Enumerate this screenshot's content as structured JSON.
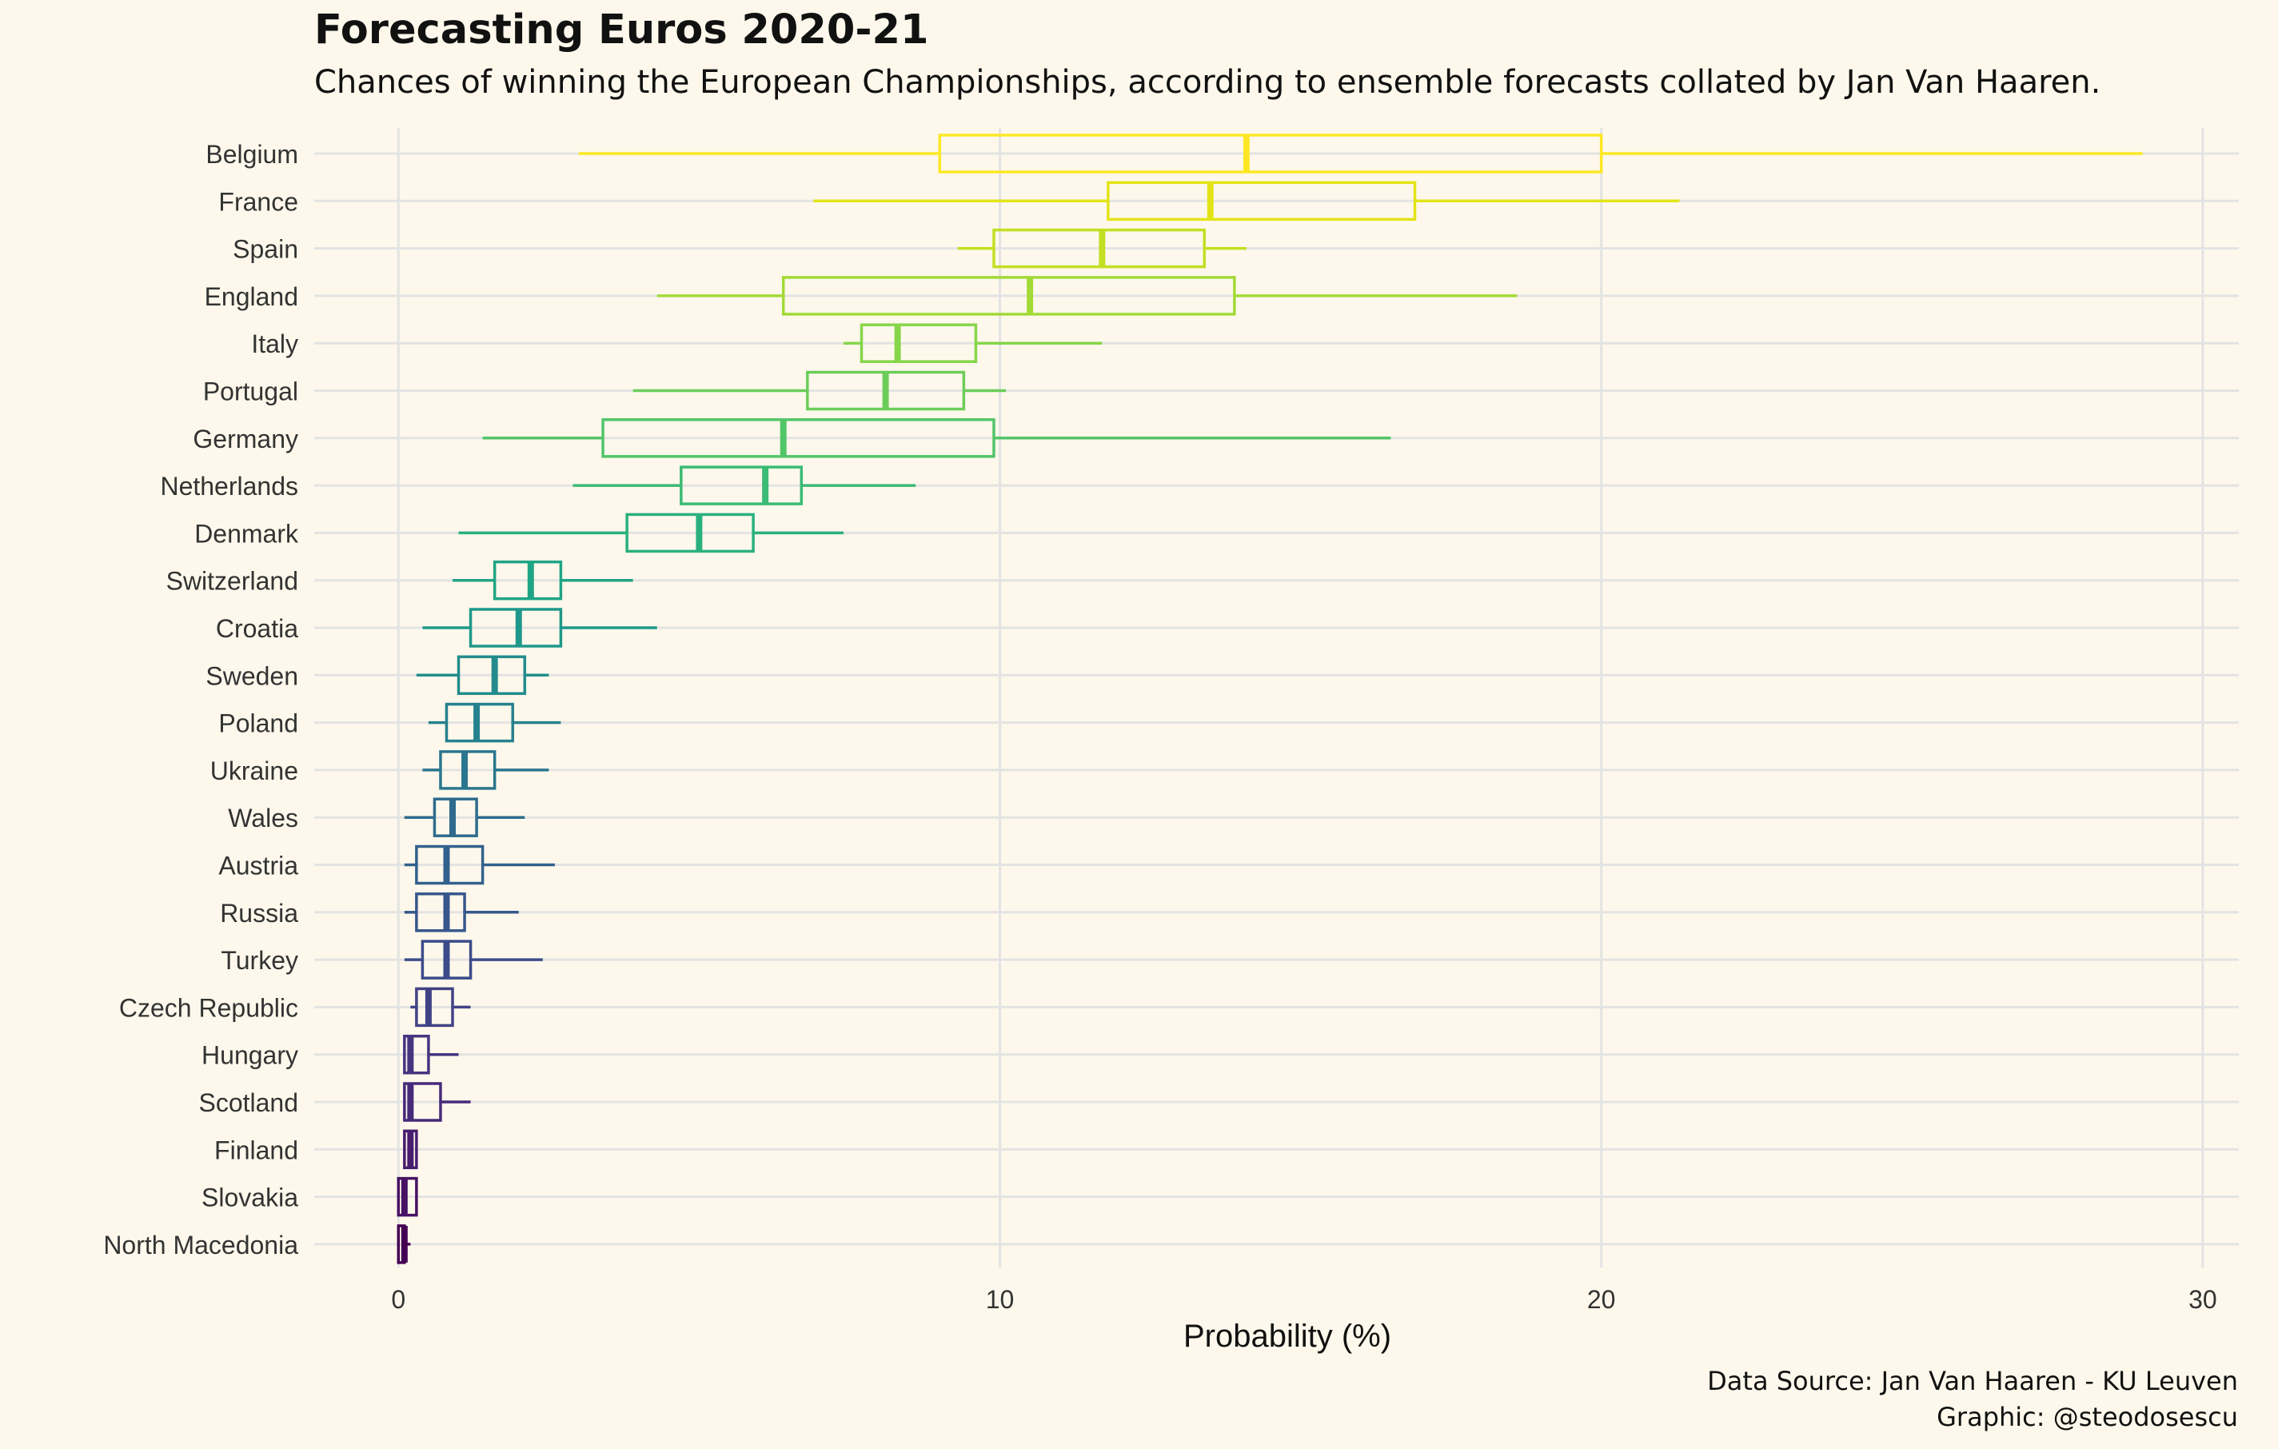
{
  "title": "Forecasting Euros 2020-21",
  "subtitle": "Chances of winning the European Championships, according to ensemble forecasts collated by Jan Van Haaren.",
  "caption": {
    "line1": "Data Source: Jan Van Haaren - KU Leuven",
    "line2": "Graphic: @steodosescu"
  },
  "colors": {
    "background": "#fdf8eb",
    "grid": "#e3e3e3",
    "text": "#111111",
    "tick_text": "#333333"
  },
  "chart_data": {
    "type": "boxplot",
    "orientation": "horizontal",
    "title": "Forecasting Euros 2020-21",
    "xlabel": "Probability (%)",
    "ylabel": "",
    "xlim": [
      -1.4,
      30.6
    ],
    "xticks": [
      0,
      10,
      20,
      30
    ],
    "grid": true,
    "legend": "none",
    "series": [
      {
        "team": "Belgium",
        "min": 3.0,
        "q1": 9.0,
        "median": 14.1,
        "q3": 20.0,
        "max": 29.0,
        "color": "#fde725"
      },
      {
        "team": "France",
        "min": 6.9,
        "q1": 11.8,
        "median": 13.5,
        "q3": 16.9,
        "max": 21.3,
        "color": "#e2e418"
      },
      {
        "team": "Spain",
        "min": 9.3,
        "q1": 9.9,
        "median": 11.7,
        "q3": 13.4,
        "max": 14.1,
        "color": "#c2df23"
      },
      {
        "team": "England",
        "min": 4.3,
        "q1": 6.4,
        "median": 10.5,
        "q3": 13.9,
        "max": 18.6,
        "color": "#a2da37"
      },
      {
        "team": "Italy",
        "min": 7.4,
        "q1": 7.7,
        "median": 8.3,
        "q3": 9.6,
        "max": 11.7,
        "color": "#86d549"
      },
      {
        "team": "Portugal",
        "min": 3.9,
        "q1": 6.8,
        "median": 8.1,
        "q3": 9.4,
        "max": 10.1,
        "color": "#6ccd5a"
      },
      {
        "team": "Germany",
        "min": 1.4,
        "q1": 3.4,
        "median": 6.4,
        "q3": 9.9,
        "max": 16.5,
        "color": "#52c569"
      },
      {
        "team": "Netherlands",
        "min": 2.9,
        "q1": 4.7,
        "median": 6.1,
        "q3": 6.7,
        "max": 8.6,
        "color": "#3bbb75"
      },
      {
        "team": "Denmark",
        "min": 1.0,
        "q1": 3.8,
        "median": 5.0,
        "q3": 5.9,
        "max": 7.4,
        "color": "#2ab07f"
      },
      {
        "team": "Switzerland",
        "min": 0.9,
        "q1": 1.6,
        "median": 2.2,
        "q3": 2.7,
        "max": 3.9,
        "color": "#20a486"
      },
      {
        "team": "Croatia",
        "min": 0.4,
        "q1": 1.2,
        "median": 2.0,
        "q3": 2.7,
        "max": 4.3,
        "color": "#1f988b"
      },
      {
        "team": "Sweden",
        "min": 0.3,
        "q1": 1.0,
        "median": 1.6,
        "q3": 2.1,
        "max": 2.5,
        "color": "#228c8d"
      },
      {
        "team": "Poland",
        "min": 0.5,
        "q1": 0.8,
        "median": 1.3,
        "q3": 1.9,
        "max": 2.7,
        "color": "#26818e"
      },
      {
        "team": "Ukraine",
        "min": 0.4,
        "q1": 0.7,
        "median": 1.1,
        "q3": 1.6,
        "max": 2.5,
        "color": "#2a768e"
      },
      {
        "team": "Wales",
        "min": 0.1,
        "q1": 0.6,
        "median": 0.9,
        "q3": 1.3,
        "max": 2.1,
        "color": "#2e6b8e"
      },
      {
        "team": "Austria",
        "min": 0.1,
        "q1": 0.3,
        "median": 0.8,
        "q3": 1.4,
        "max": 2.6,
        "color": "#32618d"
      },
      {
        "team": "Russia",
        "min": 0.1,
        "q1": 0.3,
        "median": 0.8,
        "q3": 1.1,
        "max": 2.0,
        "color": "#37578c"
      },
      {
        "team": "Turkey",
        "min": 0.1,
        "q1": 0.4,
        "median": 0.8,
        "q3": 1.2,
        "max": 2.4,
        "color": "#3c4c8a"
      },
      {
        "team": "Czech Republic",
        "min": 0.2,
        "q1": 0.3,
        "median": 0.5,
        "q3": 0.9,
        "max": 1.2,
        "color": "#414286"
      },
      {
        "team": "Hungary",
        "min": 0.1,
        "q1": 0.1,
        "median": 0.2,
        "q3": 0.5,
        "max": 1.0,
        "color": "#453581"
      },
      {
        "team": "Scotland",
        "min": 0.1,
        "q1": 0.1,
        "median": 0.2,
        "q3": 0.7,
        "max": 1.2,
        "color": "#472a7a"
      },
      {
        "team": "Finland",
        "min": 0.1,
        "q1": 0.1,
        "median": 0.2,
        "q3": 0.3,
        "max": 0.3,
        "color": "#481d6f"
      },
      {
        "team": "Slovakia",
        "min": 0.0,
        "q1": 0.0,
        "median": 0.1,
        "q3": 0.3,
        "max": 0.3,
        "color": "#471164"
      },
      {
        "team": "North Macedonia",
        "min": 0.0,
        "q1": 0.0,
        "median": 0.1,
        "q3": 0.1,
        "max": 0.2,
        "color": "#440154"
      }
    ]
  }
}
